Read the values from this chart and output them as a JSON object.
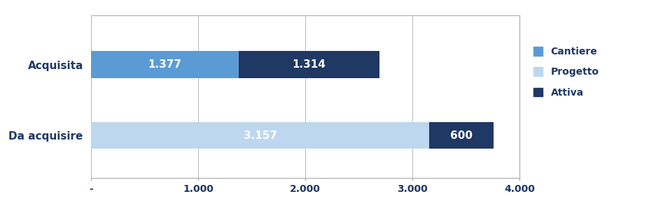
{
  "categories": [
    "Da acquisire",
    "Acquisita"
  ],
  "series": {
    "Cantiere": [
      0,
      1377
    ],
    "Progetto": [
      3157,
      0
    ],
    "Attiva": [
      600,
      1314
    ]
  },
  "colors": {
    "Cantiere": "#5B9BD5",
    "Progetto": "#BDD7EE",
    "Attiva": "#1F3864"
  },
  "bar_labels": {
    "Cantiere": [
      "",
      "1.377"
    ],
    "Progetto": [
      "3.157",
      ""
    ],
    "Attiva": [
      "600",
      "1.314"
    ]
  },
  "xlim": [
    0,
    4000
  ],
  "xticks": [
    0,
    1000,
    2000,
    3000,
    4000
  ],
  "xtick_labels": [
    "-",
    "1.000",
    "2.000",
    "3.000",
    "4.000"
  ],
  "legend_order": [
    "Cantiere",
    "Progetto",
    "Attiva"
  ],
  "bar_height": 0.38,
  "label_fontsize": 11,
  "tick_fontsize": 10,
  "ytick_fontsize": 11,
  "background_color": "#FFFFFF",
  "grid_color": "#AAAAAA",
  "text_color": "#FFFFFF",
  "ycat_color": "#1F3864"
}
